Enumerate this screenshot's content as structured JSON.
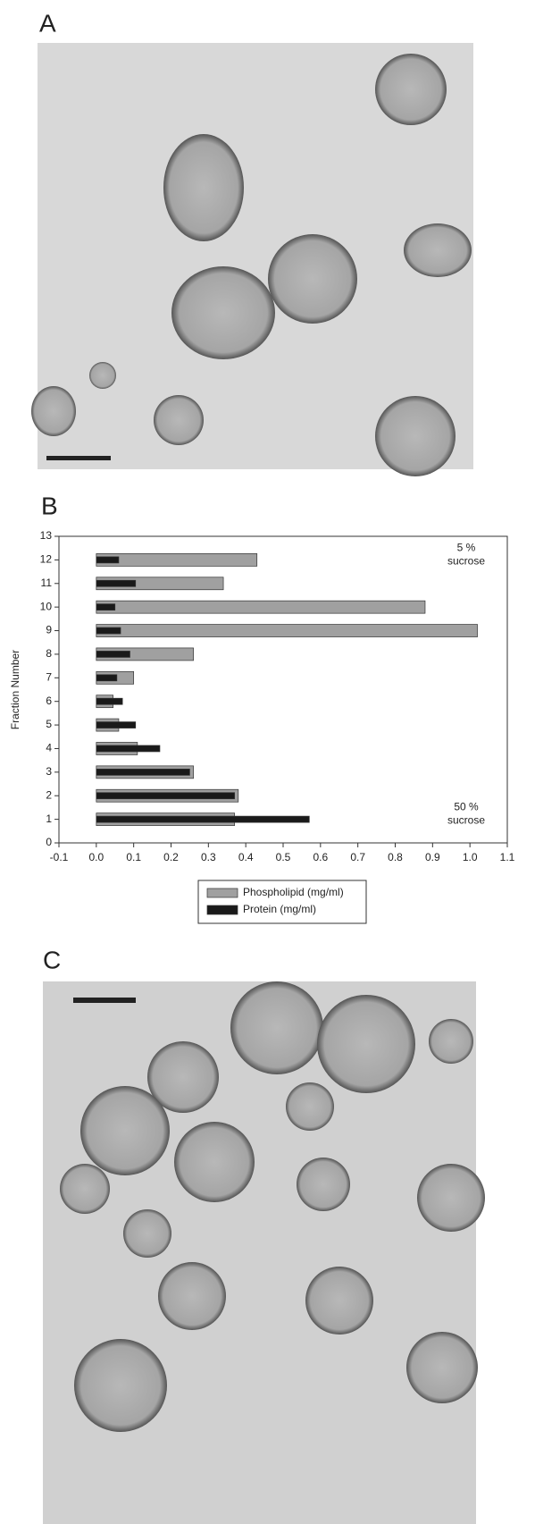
{
  "figure": {
    "panel_labels": [
      "A",
      "B",
      "C"
    ]
  },
  "chart_data": {
    "type": "hbar",
    "y_label": "Fraction Number",
    "categories": [
      1,
      2,
      3,
      4,
      5,
      6,
      7,
      8,
      9,
      10,
      11,
      12
    ],
    "series": [
      {
        "name": "Phospholipid (mg/ml)",
        "color": "#a0a0a0",
        "values": [
          0.37,
          0.38,
          0.26,
          0.11,
          0.06,
          0.045,
          0.1,
          0.26,
          1.02,
          0.88,
          0.34,
          0.43
        ]
      },
      {
        "name": "Protein (mg/ml)",
        "color": "#1a1a1a",
        "values": [
          0.57,
          0.37,
          0.25,
          0.17,
          0.105,
          0.07,
          0.055,
          0.09,
          0.065,
          0.05,
          0.105,
          0.06
        ]
      }
    ],
    "xlim": [
      -0.1,
      1.1
    ],
    "xticks": [
      -0.1,
      {
        "value": 0,
        "label": "0.0"
      },
      0.1,
      0.2,
      0.3,
      0.4,
      0.5,
      0.6,
      0.7,
      0.8,
      0.9,
      {
        "value": 1,
        "label": "1.0"
      },
      1.1
    ],
    "ylim": [
      0,
      13
    ],
    "yticks": [
      0,
      1,
      2,
      3,
      4,
      5,
      6,
      7,
      8,
      9,
      10,
      11,
      12,
      13
    ],
    "annotations": [
      [
        "5 %",
        "sucrose"
      ],
      [
        "50 %",
        "sucrose"
      ]
    ],
    "legend": "bottom"
  }
}
